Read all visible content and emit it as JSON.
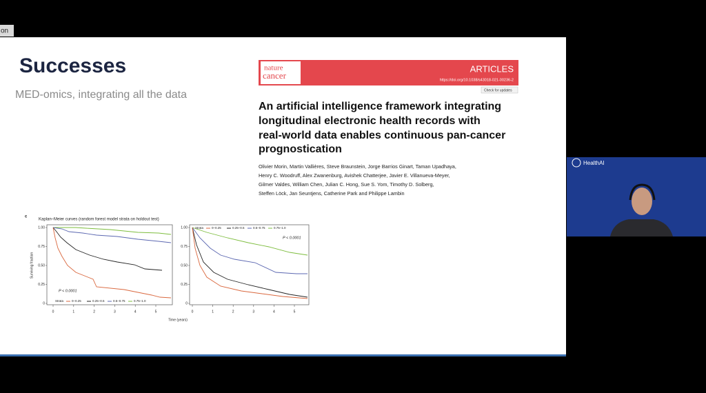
{
  "overlay_label": "on",
  "slide": {
    "title": "Successes",
    "subtitle": "MED-omics, integrating all the data",
    "article": {
      "journal": [
        "nature",
        "cancer"
      ],
      "section": "ARTICLES",
      "doi": "https://doi.org/10.1038/s43018-021-00236-2",
      "update_badge": "Check for updates",
      "title_lines": [
        "An artificial intelligence framework integrating",
        "longitudinal electronic health records with",
        "real-world data enables continuous pan-cancer",
        "prognostication"
      ],
      "author_lines": [
        "Olivier Morin, Martin Vallières, Steve Braunstein, Jorge Barrios Ginart, Taman Upadhaya,",
        "Henry C. Woodruff, Alex Zwanenburg, Avishek Chatterjee, Javier E. Villanueva-Meyer,",
        "Gilmer Valdes, William Chen, Julian C. Hong, Sue S. Yom, Timothy D. Solberg,",
        "Steffen Löck, Jan Seuntjens, Catherine Park and Philippe Lambin"
      ]
    },
    "figure": {
      "panel": "c",
      "title": "Kaplan–Meier curves (random forest model strata on holdout test)",
      "y_label": "Surviving fraction",
      "x_label": "Time (years)",
      "plots": [
        {
          "yticks": [
            "0",
            "0.25",
            "0.50",
            "0.75",
            "1.00"
          ],
          "xticks": [
            "0",
            "1",
            "2",
            "3",
            "4",
            "5"
          ],
          "p_value": "P < 0.0001",
          "legend_title": "Strata",
          "legend": [
            "0–0.25",
            "0.25–0.5",
            "0.5–0.75",
            "0.75–1.0"
          ]
        },
        {
          "yticks": [
            "0",
            "0.25",
            "0.50",
            "0.75",
            "1.00"
          ],
          "xticks": [
            "0",
            "1",
            "2",
            "3",
            "4",
            "5"
          ],
          "p_value": "P < 0.0001",
          "legend_title": "Strata",
          "legend": [
            "0–0.25",
            "0.25–0.5",
            "0.5–0.75",
            "0.75–1.0"
          ]
        }
      ]
    }
  },
  "speaker_panel": {
    "logo": "HealthAI"
  }
}
